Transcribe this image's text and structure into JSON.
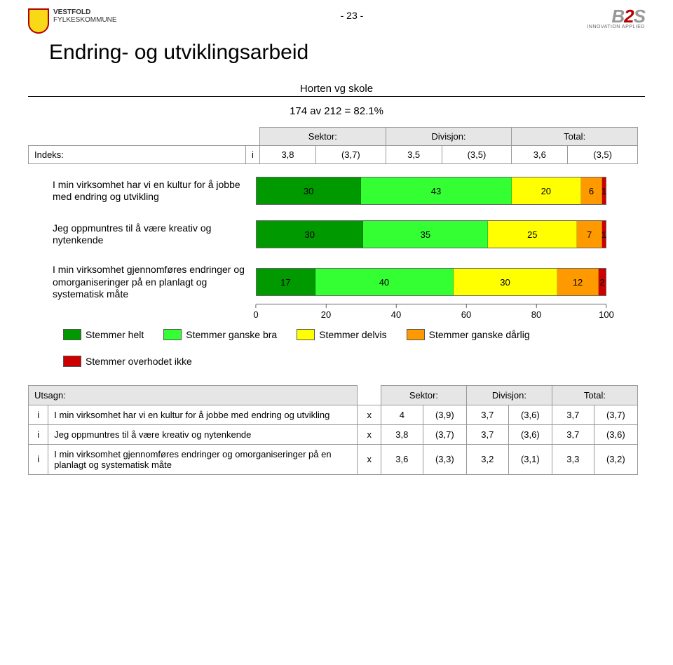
{
  "page_marker": "- 23 -",
  "left_logo": {
    "line1": "VESTFOLD",
    "line2": "FYLKESKOMMUNE"
  },
  "right_logo": {
    "brand_b": "B",
    "brand_2": "2",
    "brand_s": "S",
    "tagline": "INNOVATION APPLIED"
  },
  "title": "Endring- og utviklingsarbeid",
  "subtitle": "Horten vg skole",
  "response_rate": "174 av 212 = 82.1%",
  "indeks": {
    "headers": [
      "Sektor:",
      "Divisjon:",
      "Total:"
    ],
    "row_label": "Indeks:",
    "sub": "i",
    "values": [
      "3,8",
      "(3,7)",
      "3,5",
      "(3,5)",
      "3,6",
      "(3,5)"
    ]
  },
  "chart": {
    "colors": {
      "helt": "#009900",
      "ganske_bra": "#33ff33",
      "delvis": "#ffff00",
      "ganske_darlig": "#ff9900",
      "overhodet_ikke": "#cc0000",
      "axis": "#666666"
    },
    "rows": [
      {
        "label": "I min virksomhet har vi en kultur for å jobbe med endring og utvikling",
        "segments": [
          {
            "color_key": "helt",
            "value": 30
          },
          {
            "color_key": "ganske_bra",
            "value": 43
          },
          {
            "color_key": "delvis",
            "value": 20
          },
          {
            "color_key": "ganske_darlig",
            "value": 6
          },
          {
            "color_key": "overhodet_ikke",
            "value": 1
          }
        ],
        "seg_labels": [
          "30",
          "43",
          "20",
          "6",
          "1"
        ]
      },
      {
        "label": "Jeg oppmuntres til å være kreativ og nytenkende",
        "segments": [
          {
            "color_key": "helt",
            "value": 30
          },
          {
            "color_key": "ganske_bra",
            "value": 35
          },
          {
            "color_key": "delvis",
            "value": 25
          },
          {
            "color_key": "ganske_darlig",
            "value": 7
          },
          {
            "color_key": "overhodet_ikke",
            "value": 1
          }
        ],
        "seg_labels": [
          "30",
          "35",
          "25",
          "7",
          "1"
        ]
      },
      {
        "label": "I min virksomhet gjennomføres endringer og omorganiseringer på en planlagt og systematisk måte",
        "segments": [
          {
            "color_key": "helt",
            "value": 17
          },
          {
            "color_key": "ganske_bra",
            "value": 40
          },
          {
            "color_key": "delvis",
            "value": 30
          },
          {
            "color_key": "ganske_darlig",
            "value": 12
          },
          {
            "color_key": "overhodet_ikke",
            "value": 2
          }
        ],
        "seg_labels": [
          "17",
          "40",
          "30",
          "12",
          "2"
        ]
      }
    ],
    "x_ticks": [
      0,
      20,
      40,
      60,
      80,
      100
    ],
    "xlim": [
      0,
      100
    ]
  },
  "legend": [
    {
      "color_key": "helt",
      "label": "Stemmer helt"
    },
    {
      "color_key": "ganske_bra",
      "label": "Stemmer ganske bra"
    },
    {
      "color_key": "delvis",
      "label": "Stemmer delvis"
    },
    {
      "color_key": "ganske_darlig",
      "label": "Stemmer ganske dårlig"
    },
    {
      "color_key": "overhodet_ikke",
      "label": "Stemmer overhodet ikke"
    }
  ],
  "utsagn": {
    "headers": [
      "Utsagn:",
      "Sektor:",
      "Divisjon:",
      "Total:"
    ],
    "rows": [
      {
        "i": "i",
        "text": "I min virksomhet har vi en kultur for å jobbe med endring og utvikling",
        "x": "x",
        "vals": [
          "4",
          "(3,9)",
          "3,7",
          "(3,6)",
          "3,7",
          "(3,7)"
        ]
      },
      {
        "i": "i",
        "text": "Jeg oppmuntres til å være kreativ og nytenkende",
        "x": "x",
        "vals": [
          "3,8",
          "(3,7)",
          "3,7",
          "(3,6)",
          "3,7",
          "(3,6)"
        ]
      },
      {
        "i": "i",
        "text": "I min virksomhet gjennomføres endringer og omorganiseringer på en planlagt og systematisk måte",
        "x": "x",
        "vals": [
          "3,6",
          "(3,3)",
          "3,2",
          "(3,1)",
          "3,3",
          "(3,2)"
        ]
      }
    ]
  }
}
